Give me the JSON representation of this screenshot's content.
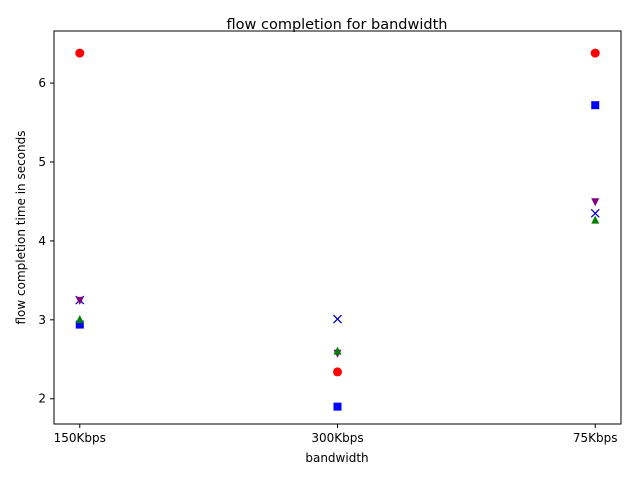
{
  "chart_data": {
    "type": "scatter",
    "title": "flow completion for bandwidth",
    "xlabel": "bandwidth",
    "ylabel": "flow completion time in seconds",
    "categories": [
      "150Kbps",
      "300Kbps",
      "75Kbps"
    ],
    "ylim": [
      1.68,
      6.66
    ],
    "yticks": [
      2,
      3,
      4,
      5,
      6
    ],
    "grid": false,
    "series": [
      {
        "marker": "square",
        "color": "#0000ff",
        "values": [
          2.94,
          1.9,
          5.72
        ]
      },
      {
        "marker": "x",
        "color": "#0000cc",
        "values": [
          3.25,
          3.01,
          4.35
        ]
      },
      {
        "marker": "triangle-down",
        "color": "#800080",
        "values": [
          3.24,
          2.57,
          4.49
        ]
      },
      {
        "marker": "triangle-up",
        "color": "#008000",
        "values": [
          3.01,
          2.61,
          4.27
        ]
      },
      {
        "marker": "circle",
        "color": "#ff0000",
        "values": [
          6.38,
          2.34,
          6.38
        ]
      }
    ]
  }
}
